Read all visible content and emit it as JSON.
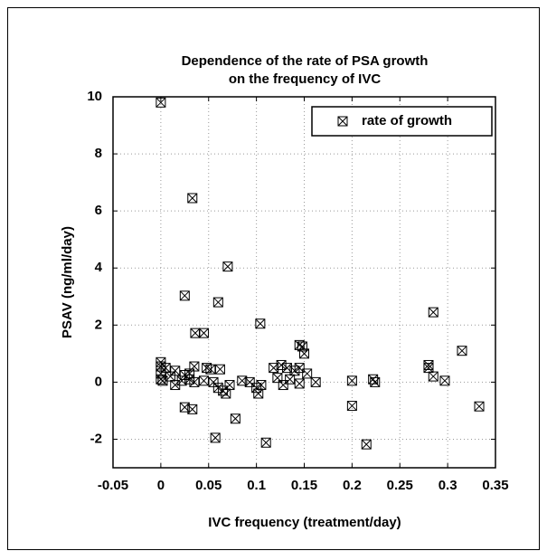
{
  "chart_data": {
    "type": "scatter",
    "title": [
      "Dependence of the rate of  PSA growth",
      "on the frequency of IVC"
    ],
    "x_label": "IVC frequency (treatment/day)",
    "y_label": "PSAV (ng/ml/day)",
    "xlim": [
      -0.05,
      0.35
    ],
    "xticks": [
      -0.05,
      0,
      0.05,
      0.1,
      0.15,
      0.2,
      0.25,
      0.3,
      0.35
    ],
    "ylim": [
      -3,
      10
    ],
    "yticks": [
      -2,
      0,
      2,
      4,
      6,
      8,
      10
    ],
    "grid": true,
    "legend": "upper right",
    "series": [
      {
        "name": "rate of growth",
        "color": "#000000",
        "x": [
          0,
          0.033,
          0.025,
          0.07,
          0.06,
          0.036,
          0.045,
          0.104,
          0.145,
          0.148,
          0.15,
          0.285,
          0.315,
          0.025,
          0.033,
          0.057,
          0.078,
          0.11,
          0.2,
          0.215,
          0.333,
          0,
          0,
          0,
          0,
          0.002,
          0.005,
          0.01,
          0.015,
          0.015,
          0.022,
          0.025,
          0.03,
          0.03,
          0.035,
          0.035,
          0.045,
          0.048,
          0.052,
          0.055,
          0.06,
          0.062,
          0.065,
          0.068,
          0.072,
          0.085,
          0.093,
          0.1,
          0.102,
          0.105,
          0.118,
          0.122,
          0.126,
          0.128,
          0.132,
          0.135,
          0.14,
          0.145,
          0.145,
          0.153,
          0.162,
          0.2,
          0.222,
          0.224,
          0.28,
          0.28,
          0.285,
          0.297
        ],
        "values": [
          9.8,
          6.45,
          3.03,
          4.05,
          2.8,
          1.72,
          1.72,
          2.05,
          1.3,
          1.25,
          1.0,
          2.45,
          1.1,
          -0.88,
          -0.95,
          -1.95,
          -1.28,
          -2.12,
          -0.83,
          -2.18,
          -0.85,
          0.7,
          0.55,
          0.3,
          0.1,
          0.05,
          0.5,
          0.2,
          0.4,
          -0.1,
          0.05,
          0.25,
          0.3,
          0.1,
          0.55,
          0,
          0.05,
          0.5,
          0.45,
          0,
          -0.2,
          0.45,
          -0.3,
          -0.4,
          -0.1,
          0.05,
          0,
          -0.2,
          -0.4,
          -0.1,
          0.5,
          0.15,
          0.6,
          -0.1,
          0.5,
          0.1,
          0.4,
          0.5,
          -0.05,
          0.3,
          0,
          0.05,
          0.1,
          0,
          0.6,
          0.5,
          0.2,
          0.05
        ]
      }
    ]
  }
}
